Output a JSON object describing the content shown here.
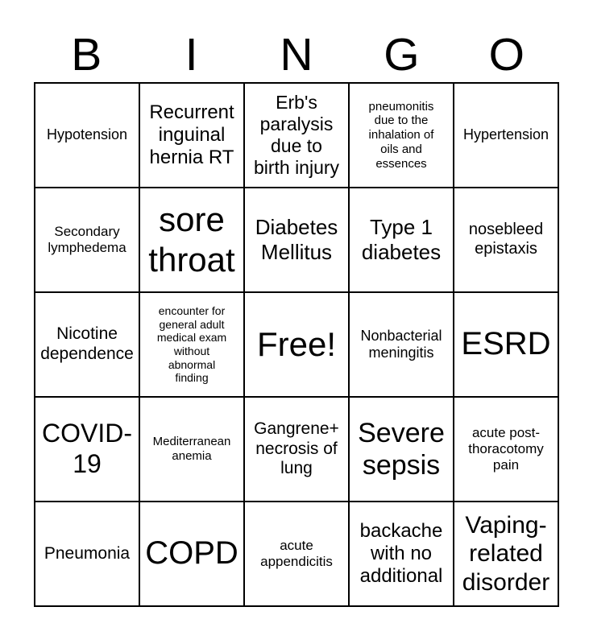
{
  "title": {
    "letters": [
      "B",
      "I",
      "N",
      "G",
      "O"
    ]
  },
  "board": {
    "rows": [
      {
        "cells": [
          {
            "label": "Hypotension"
          },
          {
            "label": "Recurrent inguinal hernia RT"
          },
          {
            "label": "Erb's paralysis due to birth injury"
          },
          {
            "label": "pneumonitis due to the inhalation of oils and essences"
          },
          {
            "label": "Hypertension"
          }
        ]
      },
      {
        "cells": [
          {
            "label": "Secondary lymphedema"
          },
          {
            "label": "sore throat"
          },
          {
            "label": "Diabetes Mellitus"
          },
          {
            "label": "Type 1 diabetes"
          },
          {
            "label": "nosebleed epistaxis"
          }
        ]
      },
      {
        "cells": [
          {
            "label": "Nicotine dependence"
          },
          {
            "label": "encounter for general adult medical exam without abnormal finding"
          },
          {
            "label": "Free!"
          },
          {
            "label": "Nonbacterial meningitis"
          },
          {
            "label": "ESRD"
          }
        ]
      },
      {
        "cells": [
          {
            "label": "COVID-19"
          },
          {
            "label": "Mediterranean anemia"
          },
          {
            "label": "Gangrene+ necrosis of lung"
          },
          {
            "label": "Severe sepsis"
          },
          {
            "label": "acute post-thoracotomy pain"
          }
        ]
      },
      {
        "cells": [
          {
            "label": "Pneumonia"
          },
          {
            "label": "COPD"
          },
          {
            "label": "acute appendicitis"
          },
          {
            "label": "backache with no additional"
          },
          {
            "label": "Vaping-related disorder"
          }
        ]
      }
    ]
  },
  "colors": {
    "background": "#ffffff",
    "text": "#000000",
    "grid_lines": "#000000"
  }
}
